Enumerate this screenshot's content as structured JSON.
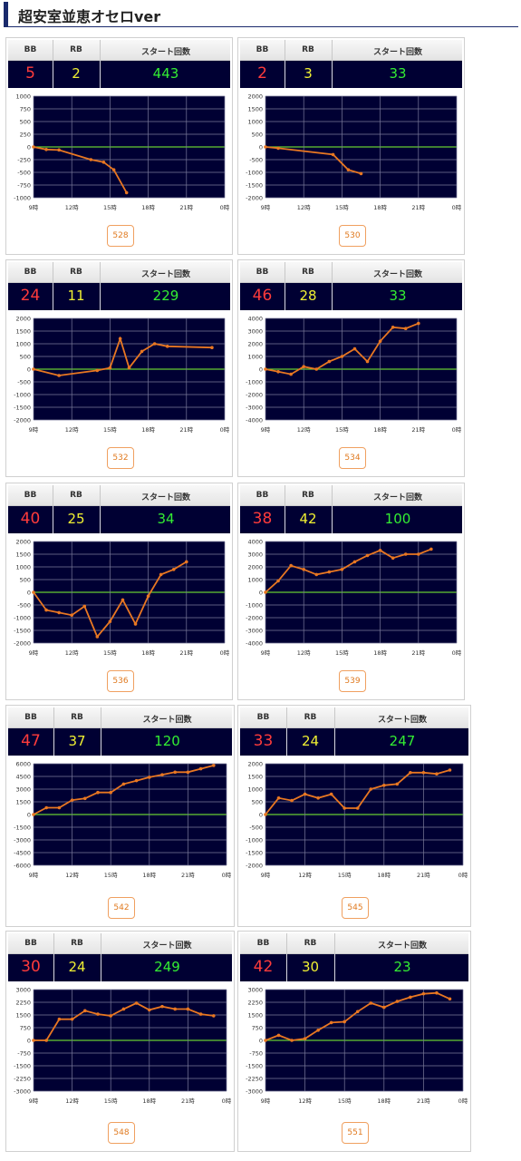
{
  "title": "超安室並恵オセロver",
  "headers": {
    "bb": "BB",
    "rb": "RB",
    "start": "スタート回数"
  },
  "x_ticks": [
    "9時",
    "12時",
    "15時",
    "18時",
    "21時",
    "0時"
  ],
  "colors": {
    "panel_bg": "#000033",
    "line": "#e87722",
    "zero_line": "#66cc33",
    "bb": "#ff3b3b",
    "rb": "#f0f033",
    "start": "#33ee33"
  },
  "machines": [
    {
      "number": "528",
      "bb": "5",
      "rb": "2",
      "start": "443",
      "yticks": [
        "1000",
        "750",
        "500",
        "250",
        "0",
        "-250",
        "-500",
        "-750",
        "-1000"
      ],
      "ymax": 1000,
      "ymin": -1000,
      "points": [
        [
          9,
          0
        ],
        [
          10,
          -50
        ],
        [
          11,
          -60
        ],
        [
          13.5,
          -250
        ],
        [
          14.5,
          -300
        ],
        [
          15.3,
          -450
        ],
        [
          16.3,
          -900
        ]
      ]
    },
    {
      "number": "530",
      "bb": "2",
      "rb": "3",
      "start": "33",
      "yticks": [
        "2000",
        "1500",
        "1000",
        "500",
        "0",
        "-500",
        "-1000",
        "-1500",
        "-2000"
      ],
      "ymax": 2000,
      "ymin": -2000,
      "points": [
        [
          9,
          0
        ],
        [
          10,
          -50
        ],
        [
          14.3,
          -300
        ],
        [
          15.5,
          -900
        ],
        [
          16.5,
          -1050
        ]
      ]
    },
    {
      "number": "532",
      "bb": "24",
      "rb": "11",
      "start": "229",
      "yticks": [
        "2000",
        "1500",
        "1000",
        "500",
        "0",
        "-500",
        "-1000",
        "-1500",
        "-2000"
      ],
      "ymax": 2000,
      "ymin": -2000,
      "points": [
        [
          9,
          0
        ],
        [
          11,
          -250
        ],
        [
          14,
          -50
        ],
        [
          15,
          50
        ],
        [
          15.8,
          1200
        ],
        [
          16.5,
          50
        ],
        [
          17.5,
          700
        ],
        [
          18.5,
          1000
        ],
        [
          19.5,
          900
        ],
        [
          23,
          850
        ]
      ]
    },
    {
      "number": "534",
      "bb": "46",
      "rb": "28",
      "start": "33",
      "yticks": [
        "4000",
        "3000",
        "2000",
        "1000",
        "0",
        "-1000",
        "-2000",
        "-3000",
        "-4000"
      ],
      "ymax": 4000,
      "ymin": -4000,
      "points": [
        [
          9,
          0
        ],
        [
          10,
          -200
        ],
        [
          11,
          -400
        ],
        [
          12,
          200
        ],
        [
          13,
          0
        ],
        [
          14,
          600
        ],
        [
          15,
          1000
        ],
        [
          16,
          1600
        ],
        [
          17,
          600
        ],
        [
          18,
          2200
        ],
        [
          19,
          3300
        ],
        [
          20,
          3200
        ],
        [
          21,
          3600
        ]
      ]
    },
    {
      "number": "536",
      "bb": "40",
      "rb": "25",
      "start": "34",
      "yticks": [
        "2000",
        "1500",
        "1000",
        "500",
        "0",
        "-500",
        "-1000",
        "-1500",
        "-2000"
      ],
      "ymax": 2000,
      "ymin": -2000,
      "points": [
        [
          9,
          0
        ],
        [
          10,
          -700
        ],
        [
          11,
          -800
        ],
        [
          12,
          -900
        ],
        [
          13,
          -550
        ],
        [
          14,
          -1750
        ],
        [
          15,
          -1150
        ],
        [
          16,
          -300
        ],
        [
          17,
          -1250
        ],
        [
          18,
          -150
        ],
        [
          19,
          700
        ],
        [
          20,
          900
        ],
        [
          21,
          1200
        ]
      ]
    },
    {
      "number": "539",
      "bb": "38",
      "rb": "42",
      "start": "100",
      "yticks": [
        "4000",
        "3000",
        "2000",
        "1000",
        "0",
        "-1000",
        "-2000",
        "-3000",
        "-4000"
      ],
      "ymax": 4000,
      "ymin": -4000,
      "points": [
        [
          9,
          0
        ],
        [
          10,
          900
        ],
        [
          11,
          2100
        ],
        [
          12,
          1800
        ],
        [
          13,
          1400
        ],
        [
          14,
          1600
        ],
        [
          15,
          1800
        ],
        [
          16,
          2400
        ],
        [
          17,
          2900
        ],
        [
          18,
          3300
        ],
        [
          19,
          2700
        ],
        [
          20,
          3000
        ],
        [
          21,
          3000
        ],
        [
          22,
          3400
        ]
      ]
    },
    {
      "number": "542",
      "bb": "47",
      "rb": "37",
      "start": "120",
      "yticks": [
        "6000",
        "4500",
        "3000",
        "1500",
        "0",
        "-1500",
        "-3000",
        "-4500",
        "-6000"
      ],
      "ymax": 6000,
      "ymin": -6000,
      "points": [
        [
          9,
          0
        ],
        [
          10,
          800
        ],
        [
          11,
          800
        ],
        [
          12,
          1700
        ],
        [
          13,
          1900
        ],
        [
          14,
          2600
        ],
        [
          15,
          2600
        ],
        [
          16,
          3600
        ],
        [
          17,
          4000
        ],
        [
          18,
          4400
        ],
        [
          19,
          4700
        ],
        [
          20,
          5000
        ],
        [
          21,
          5000
        ],
        [
          22,
          5400
        ],
        [
          23,
          5800
        ]
      ]
    },
    {
      "number": "545",
      "bb": "33",
      "rb": "24",
      "start": "247",
      "yticks": [
        "2000",
        "1500",
        "1000",
        "500",
        "0",
        "-500",
        "-1000",
        "-1500",
        "-2000"
      ],
      "ymax": 2000,
      "ymin": -2000,
      "points": [
        [
          9,
          0
        ],
        [
          10,
          650
        ],
        [
          11,
          550
        ],
        [
          12,
          800
        ],
        [
          13,
          650
        ],
        [
          14,
          800
        ],
        [
          15,
          250
        ],
        [
          16,
          250
        ],
        [
          17,
          1000
        ],
        [
          18,
          1150
        ],
        [
          19,
          1200
        ],
        [
          20,
          1650
        ],
        [
          21,
          1650
        ],
        [
          22,
          1600
        ],
        [
          23,
          1750
        ]
      ]
    },
    {
      "number": "548",
      "bb": "30",
      "rb": "24",
      "start": "249",
      "yticks": [
        "3000",
        "2250",
        "1500",
        "750",
        "0",
        "-750",
        "-1500",
        "-2250",
        "-3000"
      ],
      "ymax": 3000,
      "ymin": -3000,
      "points": [
        [
          9,
          0
        ],
        [
          10,
          0
        ],
        [
          11,
          1250
        ],
        [
          12,
          1250
        ],
        [
          13,
          1750
        ],
        [
          14,
          1550
        ],
        [
          15,
          1450
        ],
        [
          16,
          1850
        ],
        [
          17,
          2200
        ],
        [
          18,
          1800
        ],
        [
          19,
          2000
        ],
        [
          20,
          1850
        ],
        [
          21,
          1850
        ],
        [
          22,
          1550
        ],
        [
          23,
          1450
        ]
      ]
    },
    {
      "number": "551",
      "bb": "42",
      "rb": "30",
      "start": "23",
      "yticks": [
        "3000",
        "2250",
        "1500",
        "750",
        "0",
        "-750",
        "-1500",
        "-2250",
        "-3000"
      ],
      "ymax": 3000,
      "ymin": -3000,
      "points": [
        [
          9,
          0
        ],
        [
          10,
          300
        ],
        [
          11,
          0
        ],
        [
          12,
          100
        ],
        [
          13,
          600
        ],
        [
          14,
          1050
        ],
        [
          15,
          1100
        ],
        [
          16,
          1700
        ],
        [
          17,
          2200
        ],
        [
          18,
          1950
        ],
        [
          19,
          2300
        ],
        [
          20,
          2550
        ],
        [
          21,
          2750
        ],
        [
          22,
          2800
        ],
        [
          23,
          2450
        ]
      ]
    }
  ]
}
